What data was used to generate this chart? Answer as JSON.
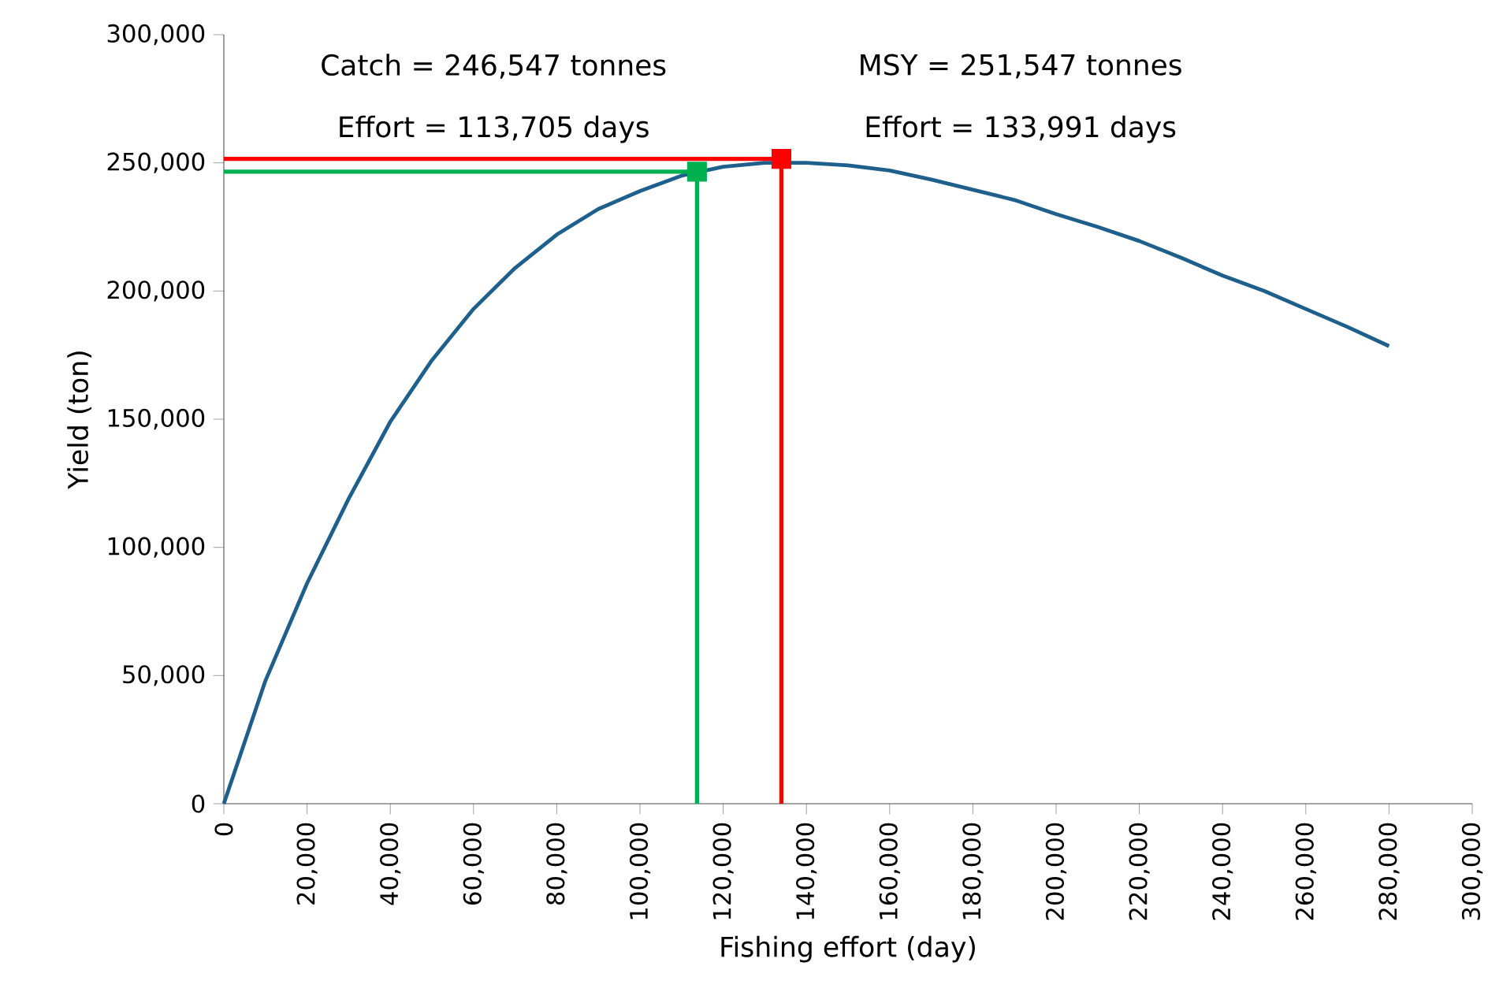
{
  "chart_data": {
    "type": "line",
    "xlabel": "Fishing effort (day)",
    "ylabel": "Yield (ton)",
    "xlim": [
      0,
      300000
    ],
    "ylim": [
      0,
      300000
    ],
    "xticks": [
      0,
      {
        "value": 20000,
        "label": "20,000"
      },
      {
        "value": 40000,
        "label": "40,000"
      },
      {
        "value": 60000,
        "label": "60,000"
      },
      {
        "value": 80000,
        "label": "80,000"
      },
      {
        "value": 100000,
        "label": "100,000"
      },
      {
        "value": 120000,
        "label": "120,000"
      },
      {
        "value": 140000,
        "label": "140,000"
      },
      {
        "value": 160000,
        "label": "160,000"
      },
      {
        "value": 180000,
        "label": "180,000"
      },
      {
        "value": 200000,
        "label": "200,000"
      },
      {
        "value": 220000,
        "label": "220,000"
      },
      {
        "value": 240000,
        "label": "240,000"
      },
      {
        "value": 260000,
        "label": "260,000"
      },
      {
        "value": 280000,
        "label": "280,000"
      },
      {
        "value": 300000,
        "label": "300,000"
      }
    ],
    "yticks": [
      0,
      {
        "value": 50000,
        "label": "50,000"
      },
      {
        "value": 100000,
        "label": "100,000"
      },
      {
        "value": 150000,
        "label": "150,000"
      },
      {
        "value": 200000,
        "label": "200,000"
      },
      {
        "value": 250000,
        "label": "250,000"
      },
      {
        "value": 300000,
        "label": "300,000"
      }
    ],
    "annotations": [
      "Catch = 246,547 tonnes",
      "Effort = 113,705 days",
      "MSY = 251,547 tonnes",
      "Effort = 133,991 days"
    ],
    "series": [
      {
        "color": "#1f5f8c",
        "x": [
          0,
          10000,
          20000,
          30000,
          40000,
          50000,
          60000,
          70000,
          80000,
          90000,
          100000,
          110000,
          120000,
          130000,
          140000,
          150000,
          160000,
          170000,
          180000,
          190000,
          200000,
          210000,
          220000,
          230000,
          240000,
          250000,
          260000,
          270000,
          280000
        ],
        "values": [
          0,
          48000,
          86000,
          119000,
          149000,
          173000,
          193000,
          209000,
          222000,
          232000,
          239000,
          245000,
          248500,
          250000,
          250000,
          249000,
          247000,
          243500,
          239500,
          235500,
          230000,
          225000,
          219500,
          213000,
          206000,
          200000,
          193000,
          186000,
          178500
        ]
      },
      {
        "color": "#00b050",
        "x": [
          0,
          113705,
          113705
        ],
        "values": [
          246547,
          246547,
          0
        ]
      },
      {
        "color": "#ff0000",
        "x": [
          0,
          133991,
          133991
        ],
        "values": [
          251547,
          251547,
          0
        ]
      },
      {
        "type": "scatter",
        "color": "#00b050",
        "marker": "square",
        "x": [
          113705
        ],
        "values": [
          246547
        ]
      },
      {
        "type": "scatter",
        "color": "#ff0000",
        "marker": "square",
        "x": [
          133991
        ],
        "values": [
          251547
        ]
      }
    ]
  }
}
